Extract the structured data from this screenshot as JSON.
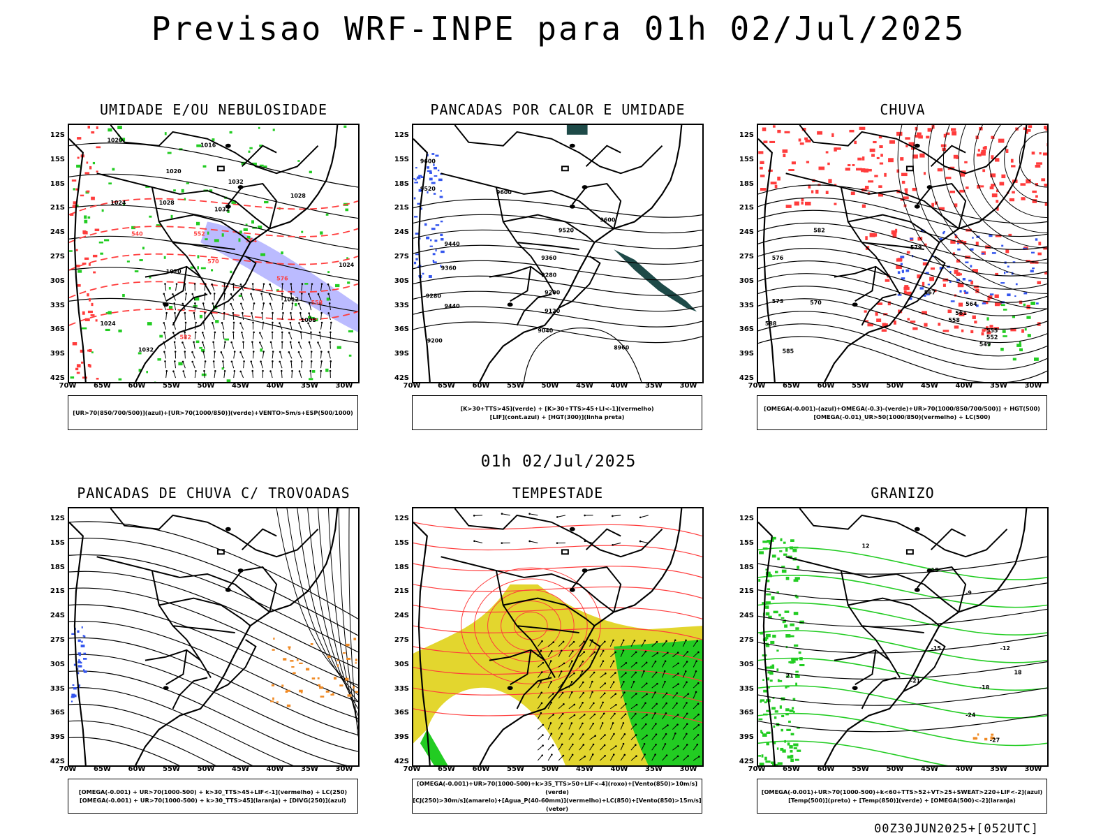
{
  "title": "Previsao WRF-INPE  para 01h 02/Jul/2025",
  "subtitle": "01h 02/Jul/2025",
  "footer": "00Z30JUN2025+[052UTC]",
  "lat_labels": [
    "12S",
    "15S",
    "18S",
    "21S",
    "24S",
    "27S",
    "30S",
    "33S",
    "36S",
    "39S",
    "42S"
  ],
  "lon_labels": [
    "70W",
    "65W",
    "60W",
    "55W",
    "50W",
    "45W",
    "40W",
    "35W",
    "30W"
  ],
  "colors": {
    "red": "#ff3c3c",
    "green": "#22cc22",
    "blue": "#3355ee",
    "lavender": "#aaaaff",
    "yellow": "#e3d62e",
    "orange": "#f08a24",
    "darkteal": "#1e4a48",
    "black": "#000000"
  },
  "panels": [
    {
      "id": "umidade",
      "title": "UMIDADE E/OU NEBULOSIDADE",
      "legend": [
        "[UR>70(850/700/500)](azul)+[UR>70(1000/850)](verde)+VENTO>5m/s+ESP(500/1000)"
      ],
      "contour_labels": [
        "1020",
        "1016",
        "1020",
        "1024",
        "1028",
        "1032",
        "1032",
        "1028",
        "1024",
        "1020",
        "1012",
        "1008",
        "1024",
        "1032",
        "540",
        "552",
        "564",
        "576",
        "558",
        "582",
        "570"
      ]
    },
    {
      "id": "pancadas-calor",
      "title": "PANCADAS POR CALOR E UMIDADE",
      "legend": [
        "[K>30+TTS>45](verde) + [K>30+TTS>45+LI<-1](vermelho)",
        "[LIF](cont.azul) + [HGT(300)](linha preta)"
      ],
      "contour_labels": [
        "9600",
        "9520",
        "9600",
        "9520",
        "9440",
        "9360",
        "9280",
        "9440",
        "9360",
        "9280",
        "9200",
        "9120",
        "9040",
        "8960",
        "9200",
        "9600"
      ]
    },
    {
      "id": "chuva",
      "title": "CHUVA",
      "legend": [
        "[OMEGA(-0.001)-(azul)+OMEGA(-0.3)-(verde)+UR>70(1000/850/700/500)] + HGT(500)",
        "[OMEGA(-0.01)_UR>50(1000/850)(vermelho) + LC(500)"
      ],
      "contour_labels": [
        "582",
        "579",
        "576",
        "573",
        "570",
        "567",
        "564",
        "561",
        "558",
        "555",
        "552",
        "549",
        "588",
        "585"
      ]
    },
    {
      "id": "pancadas-trovoadas",
      "title": "PANCADAS DE CHUVA C/ TROVOADAS",
      "legend": [
        "[OMEGA(-0.001) + UR>70(1000-500) + k>30_TTS>45+LIF<-1](vermelho) + LC(250)",
        "[OMEGA(-0.001) + UR>70(1000-500) + k>30_TTS>45](laranja) + [DIVG(250)](azul)"
      ],
      "contour_labels": []
    },
    {
      "id": "tempestade",
      "title": "TEMPESTADE",
      "legend": [
        "[OMEGA(-0.001)+UR>70(1000-500)+k>35_TTS>50+LIF<-4](roxo)+[Vento(850)>10m/s](verde)",
        "[CJ(250)>30m/s](amarelo)+[Agua_P(40-60mm)](vermelho)+LC(850)+[Vento(850)>15m/s](vetor)"
      ],
      "contour_labels": []
    },
    {
      "id": "granizo",
      "title": "GRANIZO",
      "legend": [
        "[OMEGA(-0.001)+UR>70(1000-500)+k<60+TTS>52+VT>25+SWEAT>220+LIF<-2](azul)",
        "[Temp(500)](preto) + [Temp(850)](verde) + [OMEGA(500)<-2](laranja)"
      ],
      "contour_labels": [
        "-9",
        "-12",
        "-15",
        "-18",
        "-21",
        "-24",
        "-27",
        "12",
        "15",
        "18",
        "21"
      ]
    }
  ]
}
